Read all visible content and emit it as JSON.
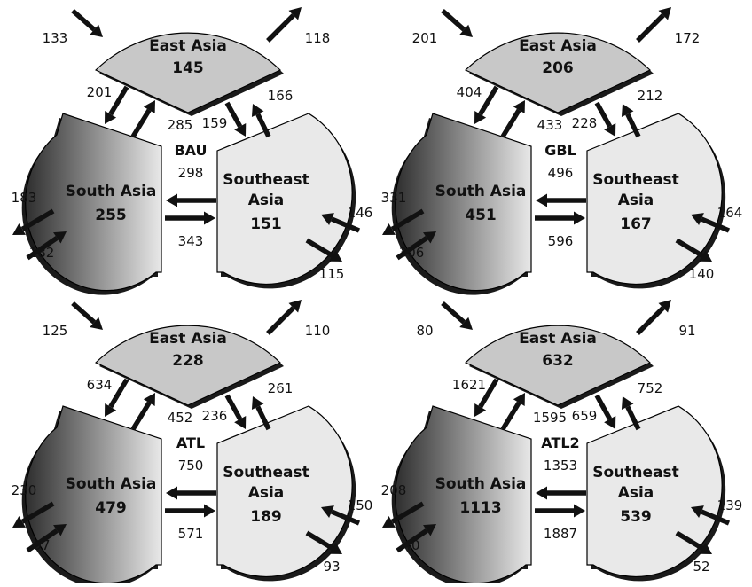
{
  "regions": {
    "east": "East Asia",
    "south": "South Asia",
    "southeast_line1": "Southeast",
    "southeast_line2": "Asia"
  },
  "colors": {
    "east_fill": "#c8c8c8",
    "southeast_fill": "#e9e9e9",
    "south_gradient_dark": "#2e2e2e",
    "south_gradient_light": "#e8e8e8",
    "shadow": "#1a1a1a",
    "arrow": "#111111"
  },
  "panels": [
    {
      "scenario": "BAU",
      "total": "298",
      "east": "145",
      "south": "255",
      "southeast": "151",
      "flows": {
        "east_in": "133",
        "east_out": "118",
        "east_to_south": "201",
        "south_to_east": "285",
        "east_to_se": "159",
        "se_to_east": "166",
        "se_to_south": "298",
        "south_to_se": "343",
        "south_out": "183",
        "south_in": "182",
        "se_in": "146",
        "se_out": "115"
      }
    },
    {
      "scenario": "GBL",
      "total": "496",
      "east": "206",
      "south": "451",
      "southeast": "167",
      "flows": {
        "east_in": "201",
        "east_out": "172",
        "east_to_south": "404",
        "south_to_east": "433",
        "east_to_se": "228",
        "se_to_east": "212",
        "se_to_south": "496",
        "south_to_se": "596",
        "south_out": "331",
        "south_in": "306",
        "se_in": "164",
        "se_out": "140"
      }
    },
    {
      "scenario": "ATL",
      "total": "750",
      "east": "228",
      "south": "479",
      "southeast": "189",
      "flows": {
        "east_in": "125",
        "east_out": "110",
        "east_to_south": "634",
        "south_to_east": "452",
        "east_to_se": "236",
        "se_to_east": "261",
        "se_to_south": "750",
        "south_to_se": "571",
        "south_out": "230",
        "south_in": "97",
        "se_in": "150",
        "se_out": "93"
      }
    },
    {
      "scenario": "ATL2",
      "total": "1353",
      "east": "632",
      "south": "1113",
      "southeast": "539",
      "flows": {
        "east_in": "80",
        "east_out": "91",
        "east_to_south": "1621",
        "south_to_east": "1595",
        "east_to_se": "659",
        "se_to_east": "752",
        "se_to_south": "1353",
        "south_to_se": "1887",
        "south_out": "208",
        "south_in": "40",
        "se_in": "139",
        "se_out": "52"
      }
    }
  ]
}
